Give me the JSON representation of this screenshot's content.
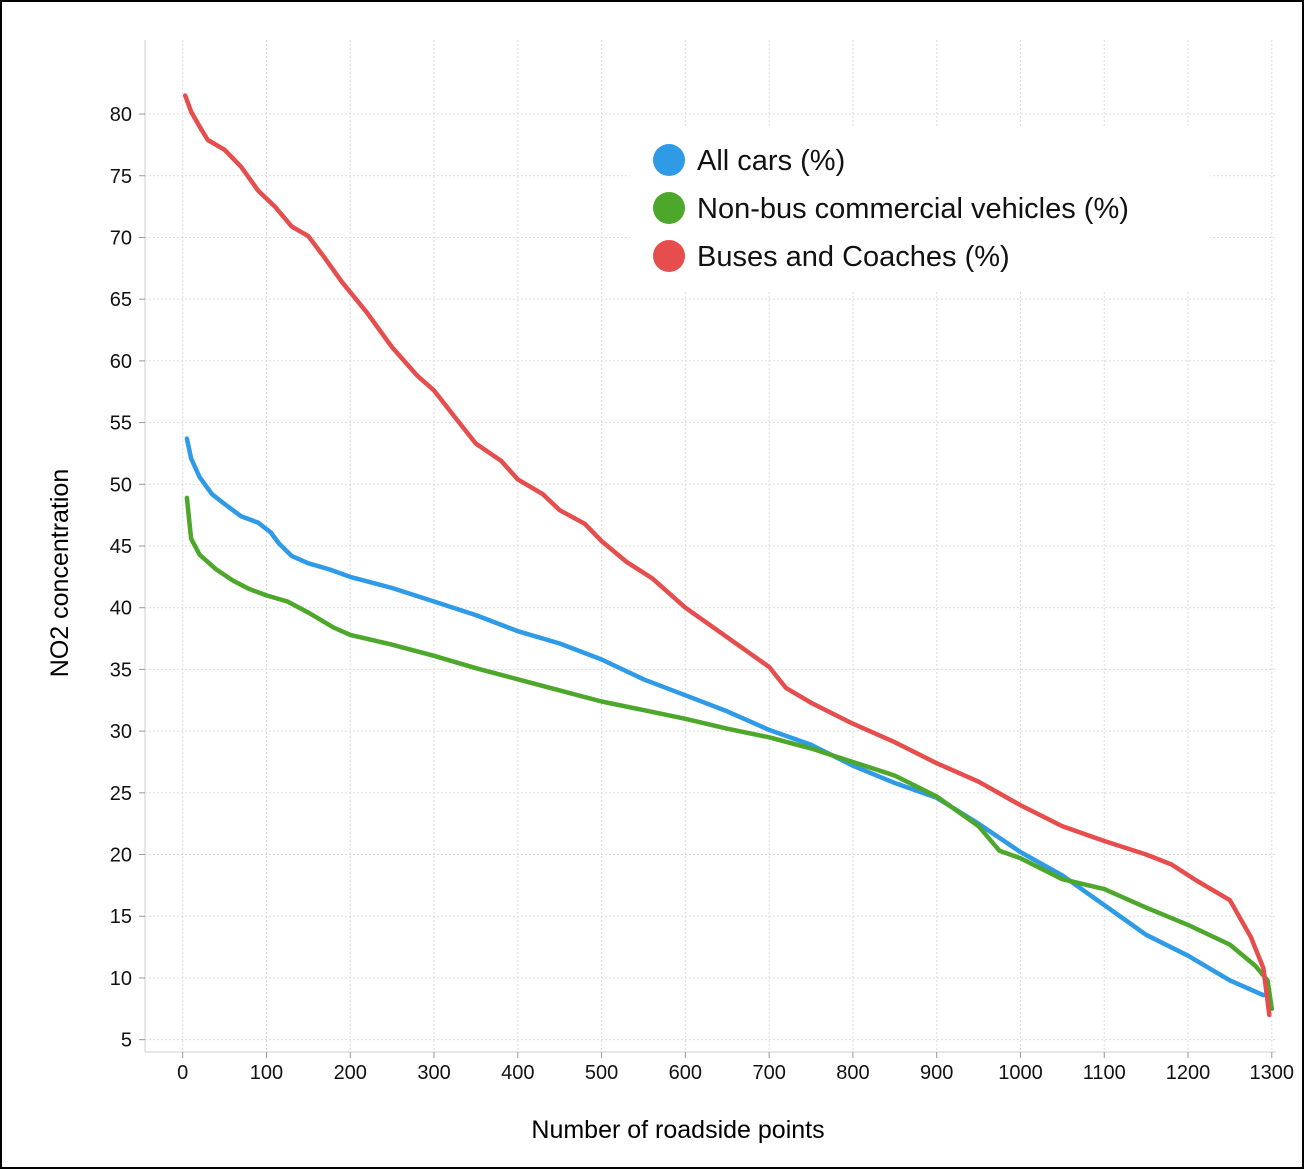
{
  "chart_data": {
    "type": "line",
    "xlabel": "Number of roadside points",
    "ylabel": "NO2 concentration",
    "xlim": [
      -45,
      1305
    ],
    "ylim": [
      4,
      86
    ],
    "x_ticks": [
      0,
      100,
      200,
      300,
      400,
      500,
      600,
      700,
      800,
      900,
      1000,
      1100,
      1200,
      1300
    ],
    "y_ticks": [
      5,
      10,
      15,
      20,
      25,
      30,
      35,
      40,
      45,
      50,
      55,
      60,
      65,
      70,
      75,
      80
    ],
    "grid": true,
    "legend_position": "top-right",
    "series": [
      {
        "name": "All cars (%)",
        "color": "#2f9be6",
        "points": [
          [
            5,
            53.7
          ],
          [
            10,
            52.1
          ],
          [
            20,
            50.6
          ],
          [
            35,
            49.2
          ],
          [
            50,
            48.4
          ],
          [
            70,
            47.4
          ],
          [
            90,
            46.9
          ],
          [
            105,
            46.1
          ],
          [
            115,
            45.2
          ],
          [
            130,
            44.2
          ],
          [
            150,
            43.6
          ],
          [
            175,
            43.1
          ],
          [
            200,
            42.5
          ],
          [
            250,
            41.6
          ],
          [
            300,
            40.5
          ],
          [
            350,
            39.4
          ],
          [
            400,
            38.1
          ],
          [
            450,
            37.1
          ],
          [
            500,
            35.8
          ],
          [
            550,
            34.2
          ],
          [
            600,
            32.9
          ],
          [
            650,
            31.6
          ],
          [
            700,
            30.1
          ],
          [
            750,
            28.9
          ],
          [
            800,
            27.2
          ],
          [
            850,
            25.8
          ],
          [
            900,
            24.6
          ],
          [
            950,
            22.5
          ],
          [
            1000,
            20.2
          ],
          [
            1050,
            18.3
          ],
          [
            1100,
            15.9
          ],
          [
            1150,
            13.5
          ],
          [
            1200,
            11.8
          ],
          [
            1250,
            9.8
          ],
          [
            1290,
            8.6
          ]
        ]
      },
      {
        "name": "Non-bus commercial vehicles (%)",
        "color": "#4ca72b",
        "points": [
          [
            5,
            48.9
          ],
          [
            10,
            45.6
          ],
          [
            20,
            44.3
          ],
          [
            40,
            43.1
          ],
          [
            60,
            42.2
          ],
          [
            80,
            41.5
          ],
          [
            100,
            41.0
          ],
          [
            125,
            40.5
          ],
          [
            150,
            39.6
          ],
          [
            180,
            38.4
          ],
          [
            200,
            37.8
          ],
          [
            250,
            37.0
          ],
          [
            300,
            36.1
          ],
          [
            350,
            35.1
          ],
          [
            400,
            34.2
          ],
          [
            450,
            33.3
          ],
          [
            500,
            32.4
          ],
          [
            550,
            31.7
          ],
          [
            600,
            31.0
          ],
          [
            650,
            30.2
          ],
          [
            700,
            29.5
          ],
          [
            750,
            28.6
          ],
          [
            800,
            27.5
          ],
          [
            850,
            26.4
          ],
          [
            900,
            24.7
          ],
          [
            950,
            22.3
          ],
          [
            975,
            20.3
          ],
          [
            1000,
            19.7
          ],
          [
            1050,
            18.0
          ],
          [
            1100,
            17.2
          ],
          [
            1150,
            15.7
          ],
          [
            1200,
            14.3
          ],
          [
            1250,
            12.7
          ],
          [
            1280,
            11.0
          ],
          [
            1295,
            9.8
          ],
          [
            1300,
            7.5
          ]
        ]
      },
      {
        "name": "Buses and Coaches (%)",
        "color": "#e64d4d",
        "points": [
          [
            3,
            81.5
          ],
          [
            10,
            80.2
          ],
          [
            20,
            79.0
          ],
          [
            30,
            77.9
          ],
          [
            50,
            77.1
          ],
          [
            70,
            75.7
          ],
          [
            90,
            73.8
          ],
          [
            110,
            72.5
          ],
          [
            130,
            70.9
          ],
          [
            150,
            70.1
          ],
          [
            170,
            68.3
          ],
          [
            190,
            66.4
          ],
          [
            220,
            63.9
          ],
          [
            250,
            61.1
          ],
          [
            280,
            58.8
          ],
          [
            300,
            57.6
          ],
          [
            330,
            55.0
          ],
          [
            350,
            53.3
          ],
          [
            380,
            51.9
          ],
          [
            400,
            50.4
          ],
          [
            430,
            49.2
          ],
          [
            450,
            47.9
          ],
          [
            480,
            46.8
          ],
          [
            500,
            45.4
          ],
          [
            530,
            43.7
          ],
          [
            560,
            42.4
          ],
          [
            600,
            40.0
          ],
          [
            650,
            37.6
          ],
          [
            700,
            35.2
          ],
          [
            720,
            33.5
          ],
          [
            750,
            32.3
          ],
          [
            800,
            30.6
          ],
          [
            850,
            29.1
          ],
          [
            900,
            27.4
          ],
          [
            950,
            25.9
          ],
          [
            1000,
            24.0
          ],
          [
            1050,
            22.3
          ],
          [
            1100,
            21.1
          ],
          [
            1150,
            20.0
          ],
          [
            1180,
            19.2
          ],
          [
            1210,
            17.9
          ],
          [
            1250,
            16.3
          ],
          [
            1275,
            13.3
          ],
          [
            1290,
            10.8
          ],
          [
            1297,
            7.0
          ]
        ]
      }
    ]
  }
}
